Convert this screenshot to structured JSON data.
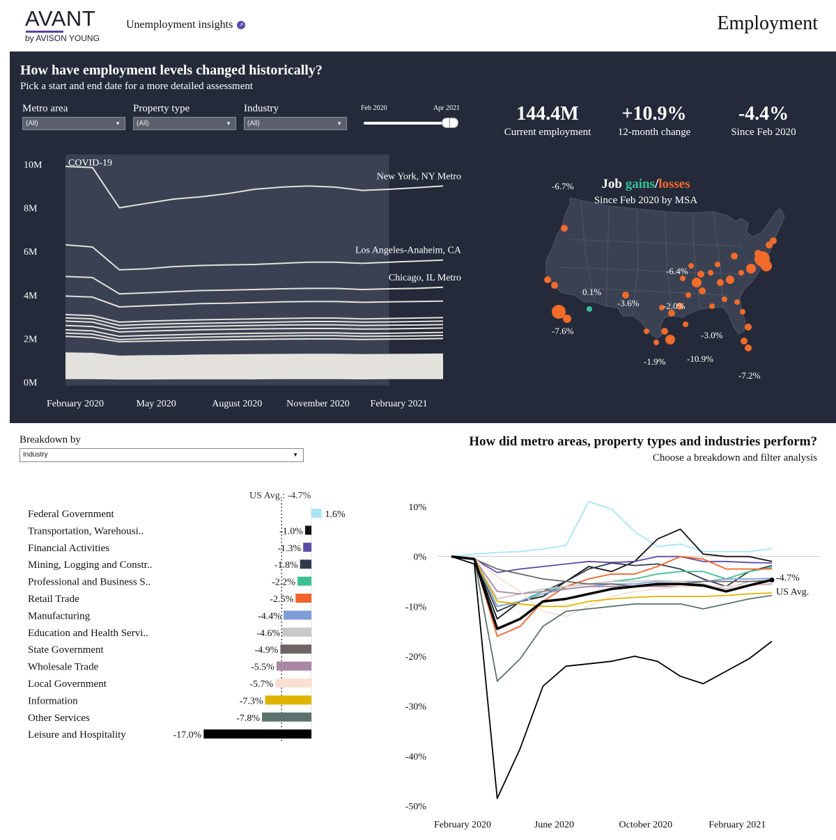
{
  "header": {
    "logo_text": "AVANT",
    "logo_sub": "by AVISON YOUNG",
    "nav_link": "Unemployment insights",
    "page_title": "Employment"
  },
  "panel": {
    "title": "How have employment levels changed historically?",
    "subtitle": "Pick a start and end date for a more detailed assessment",
    "filters": [
      {
        "label": "Metro area",
        "value": "(All)"
      },
      {
        "label": "Property type",
        "value": "(All)"
      },
      {
        "label": "Industry",
        "value": "(All)"
      }
    ],
    "date_slider": {
      "start": "Feb 2020",
      "end": "Apr 2021"
    },
    "kpis": [
      {
        "value": "144.4M",
        "label": "Current employment"
      },
      {
        "value": "+10.9%",
        "label": "12-month change"
      },
      {
        "value": "-4.4%",
        "label": "Since Feb 2020"
      }
    ],
    "map": {
      "title_prefix": "Job ",
      "title_gains": "gains",
      "title_slash": "/",
      "title_losses": "losses",
      "subtitle": "Since Feb 2020 by MSA",
      "gain_color": "#35c29a",
      "loss_color": "#f26b2a",
      "labels": [
        "-6.7%",
        "0.1%",
        "-3.6%",
        "-6.4%",
        "-2.0%",
        "-7.6%",
        "-3.0%",
        "-1.9%",
        "-10.9%",
        "-7.2%"
      ]
    }
  },
  "breakdown": {
    "label": "Breakdown by",
    "value": "Industry",
    "title": "How did metro areas, property types and industries perform?",
    "subtitle": "Choose a breakdown and filter analysis"
  },
  "chart_data": [
    {
      "type": "line",
      "x": [
        "Feb 2020",
        "Mar 2020",
        "Apr 2020",
        "May 2020",
        "Jun 2020",
        "Jul 2020",
        "Aug 2020",
        "Sep 2020",
        "Oct 2020",
        "Nov 2020",
        "Dec 2020",
        "Jan 2021",
        "Feb 2021",
        "Mar 2021",
        "Apr 2021"
      ],
      "xticks": [
        "February 2020",
        "May 2020",
        "August 2020",
        "November 2020",
        "February 2021"
      ],
      "yticks": [
        "0M",
        "2M",
        "4M",
        "6M",
        "8M",
        "10M"
      ],
      "ylim": [
        0,
        10
      ],
      "annotation": "COVID-19",
      "series": [
        {
          "name": "New York, NY Metro",
          "values": [
            9.9,
            9.85,
            8.0,
            8.2,
            8.4,
            8.5,
            8.65,
            8.85,
            8.95,
            9.0,
            8.95,
            8.8,
            8.85,
            8.92,
            9.0
          ]
        },
        {
          "name": "Los Angeles-Anaheim, CA",
          "values": [
            6.3,
            6.2,
            5.15,
            5.2,
            5.3,
            5.35,
            5.38,
            5.4,
            5.45,
            5.5,
            5.5,
            5.45,
            5.5,
            5.55,
            5.6
          ]
        },
        {
          "name": "Chicago, IL Metro",
          "values": [
            4.85,
            4.8,
            4.05,
            4.1,
            4.15,
            4.2,
            4.22,
            4.25,
            4.28,
            4.3,
            4.3,
            4.25,
            4.28,
            4.3,
            4.35
          ]
        },
        {
          "values": [
            3.95,
            3.9,
            3.45,
            3.5,
            3.55,
            3.6,
            3.62,
            3.65,
            3.68,
            3.7,
            3.7,
            3.66,
            3.68,
            3.7,
            3.72
          ]
        },
        {
          "values": [
            3.1,
            3.05,
            2.75,
            2.8,
            2.83,
            2.86,
            2.88,
            2.9,
            2.92,
            2.94,
            2.94,
            2.9,
            2.92,
            2.94,
            2.96
          ]
        },
        {
          "values": [
            2.95,
            2.9,
            2.6,
            2.65,
            2.68,
            2.7,
            2.72,
            2.74,
            2.76,
            2.78,
            2.78,
            2.75,
            2.76,
            2.78,
            2.8
          ]
        },
        {
          "values": [
            2.8,
            2.75,
            2.45,
            2.5,
            2.53,
            2.56,
            2.58,
            2.6,
            2.62,
            2.63,
            2.63,
            2.6,
            2.61,
            2.62,
            2.64
          ]
        },
        {
          "values": [
            2.6,
            2.55,
            2.3,
            2.34,
            2.37,
            2.4,
            2.42,
            2.44,
            2.45,
            2.46,
            2.46,
            2.43,
            2.44,
            2.46,
            2.48
          ]
        },
        {
          "values": [
            2.4,
            2.35,
            2.1,
            2.14,
            2.17,
            2.2,
            2.22,
            2.24,
            2.25,
            2.26,
            2.26,
            2.23,
            2.24,
            2.26,
            2.28
          ]
        },
        {
          "values": [
            2.25,
            2.2,
            1.95,
            2.0,
            2.03,
            2.06,
            2.08,
            2.1,
            2.12,
            2.13,
            2.13,
            2.1,
            2.11,
            2.12,
            2.14
          ]
        },
        {
          "values": [
            2.1,
            2.05,
            1.85,
            1.88,
            1.9,
            1.92,
            1.94,
            1.96,
            1.97,
            1.98,
            1.98,
            1.96,
            1.97,
            1.98,
            2.0
          ]
        },
        {
          "values": [
            1.3,
            1.28,
            1.15,
            1.17,
            1.18,
            1.2,
            1.21,
            1.22,
            1.23,
            1.24,
            1.24,
            1.22,
            1.23,
            1.24,
            1.25
          ]
        },
        {
          "values": [
            1.2,
            1.18,
            1.05,
            1.07,
            1.08,
            1.1,
            1.11,
            1.12,
            1.13,
            1.14,
            1.14,
            1.12,
            1.13,
            1.14,
            1.15
          ]
        },
        {
          "values": [
            1.1,
            1.08,
            0.95,
            0.97,
            0.98,
            1.0,
            1.01,
            1.02,
            1.03,
            1.04,
            1.04,
            1.02,
            1.03,
            1.04,
            1.05
          ]
        },
        {
          "values": [
            1.0,
            0.98,
            0.86,
            0.88,
            0.89,
            0.9,
            0.91,
            0.92,
            0.93,
            0.94,
            0.94,
            0.92,
            0.93,
            0.94,
            0.95
          ]
        },
        {
          "values": [
            0.9,
            0.88,
            0.78,
            0.8,
            0.81,
            0.82,
            0.83,
            0.84,
            0.85,
            0.86,
            0.86,
            0.84,
            0.85,
            0.86,
            0.87
          ]
        },
        {
          "values": [
            0.8,
            0.78,
            0.7,
            0.71,
            0.72,
            0.73,
            0.74,
            0.75,
            0.75,
            0.76,
            0.76,
            0.75,
            0.75,
            0.76,
            0.77
          ]
        },
        {
          "values": [
            0.7,
            0.68,
            0.6,
            0.61,
            0.62,
            0.63,
            0.64,
            0.64,
            0.65,
            0.66,
            0.66,
            0.65,
            0.65,
            0.66,
            0.67
          ]
        },
        {
          "values": [
            0.6,
            0.58,
            0.52,
            0.53,
            0.54,
            0.55,
            0.55,
            0.56,
            0.56,
            0.57,
            0.57,
            0.56,
            0.56,
            0.57,
            0.58
          ]
        },
        {
          "values": [
            0.5,
            0.48,
            0.43,
            0.44,
            0.45,
            0.45,
            0.46,
            0.46,
            0.47,
            0.47,
            0.47,
            0.46,
            0.47,
            0.47,
            0.48
          ]
        },
        {
          "values": [
            0.4,
            0.39,
            0.35,
            0.36,
            0.36,
            0.37,
            0.37,
            0.38,
            0.38,
            0.38,
            0.38,
            0.38,
            0.38,
            0.39,
            0.39
          ]
        },
        {
          "values": [
            0.3,
            0.29,
            0.26,
            0.27,
            0.27,
            0.28,
            0.28,
            0.28,
            0.29,
            0.29,
            0.29,
            0.28,
            0.29,
            0.29,
            0.29
          ]
        },
        {
          "values": [
            0.2,
            0.2,
            0.18,
            0.18,
            0.19,
            0.19,
            0.19,
            0.19,
            0.2,
            0.2,
            0.2,
            0.19,
            0.2,
            0.2,
            0.2
          ]
        }
      ]
    },
    {
      "type": "bar",
      "orientation": "horizontal",
      "reference_label": "US Avg.: -4.7%",
      "reference_value": -4.7,
      "categories": [
        "Federal Government",
        "Transportation, Warehousi..",
        "Financial Activities",
        "Mining, Logging and Constr..",
        "Professional and Business S..",
        "Retail Trade",
        "Manufacturing",
        "Education and Health Servi..",
        "State Government",
        "Wholesale Trade",
        "Local Government",
        "Information",
        "Other Services",
        "Leisure and Hospitality"
      ],
      "values": [
        1.6,
        -1.0,
        -1.3,
        -1.8,
        -2.2,
        -2.5,
        -4.4,
        -4.6,
        -4.9,
        -5.5,
        -5.7,
        -7.3,
        -7.8,
        -17.0
      ],
      "value_labels": [
        "1.6%",
        "-1.0%",
        "-1.3%",
        "-1.8%",
        "-2.2%",
        "-2.5%",
        "-4.4%",
        "-4.6%",
        "-4.9%",
        "-5.5%",
        "-5.7%",
        "-7.3%",
        "-7.8%",
        "-17.0%"
      ],
      "colors": [
        "#a8e4f5",
        "#111111",
        "#5b4aa8",
        "#2f3a4c",
        "#3dbf94",
        "#f0632a",
        "#7f9ed6",
        "#c8c8c6",
        "#6e6565",
        "#a888a4",
        "#fadfd3",
        "#e0b300",
        "#5a736c",
        "#000000"
      ]
    },
    {
      "type": "line",
      "x": [
        "Feb 2020",
        "Mar 2020",
        "Apr 2020",
        "May 2020",
        "Jun 2020",
        "Jul 2020",
        "Aug 2020",
        "Sep 2020",
        "Oct 2020",
        "Nov 2020",
        "Dec 2020",
        "Jan 2021",
        "Feb 2021",
        "Mar 2021",
        "Apr 2021"
      ],
      "xticks": [
        "February 2020",
        "June 2020",
        "October 2020",
        "February 2021"
      ],
      "yticks": [
        "10%",
        "0%",
        "-10%",
        "-20%",
        "-30%",
        "-40%",
        "-50%"
      ],
      "ylim": [
        -50,
        10
      ],
      "end_label": "-4.7%",
      "end_label_name": "US Avg.",
      "series": [
        {
          "name": "Federal Government",
          "color": "#a8e4f5",
          "values": [
            0,
            0.5,
            0.8,
            1.0,
            1.5,
            2.2,
            11,
            9.5,
            5,
            2,
            2.5,
            1,
            1,
            1,
            1.6
          ]
        },
        {
          "name": "Transportation, Warehousing",
          "color": "#111111",
          "values": [
            0,
            -0.5,
            -12.5,
            -9,
            -8,
            -5,
            -2,
            -3,
            -1,
            3.5,
            5.5,
            0.5,
            0,
            0,
            -1.0
          ]
        },
        {
          "name": "Financial Activities",
          "color": "#5b4aa8",
          "values": [
            0,
            -0.5,
            -3.2,
            -2.5,
            -2,
            -1.5,
            -1,
            -1.2,
            -1,
            0,
            0,
            -1,
            -1,
            -1.2,
            -1.3
          ]
        },
        {
          "name": "Mining, Logging and Construction",
          "color": "#2f3a4c",
          "values": [
            0,
            -0.5,
            -11,
            -9,
            -7,
            -5,
            -2.5,
            -1.3,
            -1.8,
            -1.5,
            -2.5,
            -4.5,
            -6,
            -3,
            -1.8
          ]
        },
        {
          "name": "Professional and Business Services",
          "color": "#3dbf94",
          "values": [
            0,
            -0.5,
            -10,
            -9,
            -7,
            -6,
            -5.5,
            -5,
            -4.5,
            -3.5,
            -3,
            -3,
            -4.5,
            -3,
            -2.2
          ]
        },
        {
          "name": "Retail Trade",
          "color": "#f0632a",
          "values": [
            0,
            -0.5,
            -16,
            -14,
            -9,
            -6,
            -4.5,
            -3.5,
            -3.5,
            -2,
            0,
            -0.5,
            -2.5,
            -2.5,
            -2.5
          ]
        },
        {
          "name": "Manufacturing",
          "color": "#7f9ed6",
          "values": [
            0,
            -0.5,
            -10,
            -9,
            -7.5,
            -6.5,
            -6,
            -5.5,
            -5.5,
            -5,
            -5,
            -5,
            -4.5,
            -4.5,
            -4.4
          ]
        },
        {
          "name": "Education and Health Services",
          "color": "#c8c8c6",
          "values": [
            0,
            -0.5,
            -8.5,
            -7.5,
            -6.5,
            -6,
            -5.5,
            -5,
            -5,
            -4.8,
            -5,
            -5.5,
            -6.5,
            -5,
            -4.6
          ]
        },
        {
          "name": "State Government",
          "color": "#6e6565",
          "values": [
            0,
            -0.5,
            -2.5,
            -3.5,
            -4.5,
            -5,
            -5.5,
            -5.5,
            -6,
            -5.8,
            -5.5,
            -5,
            -5,
            -5,
            -4.9
          ]
        },
        {
          "name": "Wholesale Trade",
          "color": "#a888a4",
          "values": [
            0,
            -0.5,
            -7,
            -7.5,
            -7,
            -6.5,
            -6,
            -6,
            -6,
            -6,
            -6,
            -6,
            -6,
            -5.8,
            -5.5
          ]
        },
        {
          "name": "Local Government",
          "color": "#fadfd3",
          "values": [
            0,
            -0.5,
            -4,
            -7,
            -11,
            -12,
            -10,
            -8,
            -7,
            -6.5,
            -6,
            -6,
            -6,
            -5.8,
            -5.7
          ]
        },
        {
          "name": "Information",
          "color": "#e0b300",
          "values": [
            0,
            -0.5,
            -9,
            -9.5,
            -10,
            -10,
            -9,
            -8.5,
            -8.2,
            -8,
            -8,
            -8,
            -7.8,
            -7.5,
            -7.3
          ]
        },
        {
          "name": "Other Services",
          "color": "#5a736c",
          "values": [
            0,
            -0.5,
            -25,
            -20.5,
            -14,
            -11,
            -10.5,
            -10,
            -9.5,
            -9.5,
            -9.5,
            -10.5,
            -9.5,
            -8.5,
            -7.8
          ]
        },
        {
          "name": "Leisure and Hospitality",
          "color": "#000000",
          "values": [
            0,
            -1.5,
            -48.5,
            -38.5,
            -26,
            -22,
            -21.5,
            -21,
            -20,
            -21,
            -24,
            -25.5,
            -23,
            -20.5,
            -17.0
          ]
        },
        {
          "name": "US Avg.",
          "color": "#000000",
          "bold": true,
          "values": [
            0,
            -0.5,
            -14.5,
            -12.5,
            -9,
            -8.5,
            -7.5,
            -6.5,
            -6,
            -5.5,
            -5.5,
            -5.8,
            -7,
            -5.8,
            -4.7
          ]
        }
      ]
    }
  ]
}
